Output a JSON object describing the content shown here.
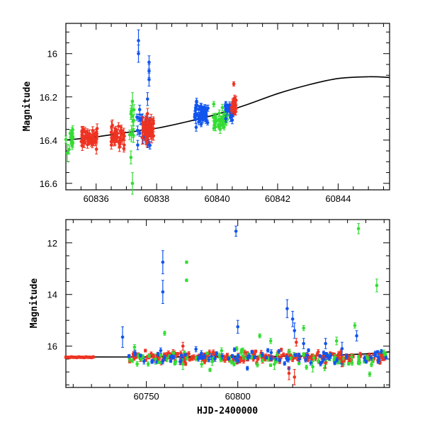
{
  "colors": {
    "green": "#33dd33",
    "blue": "#1155ee",
    "red": "#ee3322",
    "curve": "#000000"
  },
  "chart_data": [
    {
      "type": "scatter",
      "xlabel": "",
      "ylabel": "Magnitude",
      "xlim": [
        60835.0,
        60845.7
      ],
      "ylim": [
        16.63,
        15.86
      ],
      "y_inverted": true,
      "grid": false,
      "xticks": [
        60836,
        60838,
        60840,
        60842,
        60844
      ],
      "yticks": [
        16,
        16.2,
        16.4,
        16.6
      ],
      "model_curve": {
        "x": [
          60835.0,
          60836.0,
          60837.0,
          60838.0,
          60839.0,
          60840.0,
          60841.0,
          60842.0,
          60843.0,
          60844.0,
          60845.0,
          60845.7
        ],
        "y": [
          16.4,
          16.385,
          16.365,
          16.345,
          16.315,
          16.28,
          16.235,
          16.185,
          16.145,
          16.115,
          16.107,
          16.11
        ]
      },
      "series": [
        {
          "color": "green",
          "clusters": [
            {
              "x0": 60835.0,
              "x1": 60835.25,
              "y": 16.4,
              "spread": 0.03,
              "err": 0.02,
              "n": 14
            },
            {
              "x0": 60837.1,
              "x1": 60837.25,
              "y": 16.33,
              "spread": 0.06,
              "err": 0.03,
              "n": 10
            },
            {
              "x0": 60839.85,
              "x1": 60840.35,
              "y": 16.3,
              "spread": 0.025,
              "err": 0.015,
              "n": 40
            }
          ],
          "points": [
            [
              60835.05,
              16.46,
              0.04
            ],
            [
              60837.2,
              16.6,
              0.05
            ],
            [
              60837.2,
              16.22,
              0.04
            ],
            [
              60837.15,
              16.48,
              0.03
            ]
          ]
        },
        {
          "color": "blue",
          "clusters": [
            {
              "x0": 60837.35,
              "x1": 60837.8,
              "y": 16.35,
              "spread": 0.035,
              "err": 0.02,
              "n": 40
            },
            {
              "x0": 60839.25,
              "x1": 60839.7,
              "y": 16.28,
              "spread": 0.025,
              "err": 0.015,
              "n": 55
            },
            {
              "x0": 60840.25,
              "x1": 60840.55,
              "y": 16.26,
              "spread": 0.02,
              "err": 0.015,
              "n": 22
            }
          ],
          "points": [
            [
              60837.4,
              15.94,
              0.05
            ],
            [
              60837.4,
              16.0,
              0.04
            ],
            [
              60837.75,
              16.04,
              0.03
            ],
            [
              60837.75,
              16.08,
              0.03
            ],
            [
              60837.75,
              16.12,
              0.03
            ],
            [
              60837.7,
              16.21,
              0.03
            ]
          ]
        },
        {
          "color": "red",
          "clusters": [
            {
              "x0": 60835.5,
              "x1": 60836.05,
              "y": 16.385,
              "spread": 0.02,
              "err": 0.02,
              "n": 45
            },
            {
              "x0": 60836.5,
              "x1": 60836.95,
              "y": 16.38,
              "spread": 0.025,
              "err": 0.02,
              "n": 40
            },
            {
              "x0": 60837.5,
              "x1": 60837.9,
              "y": 16.35,
              "spread": 0.03,
              "err": 0.025,
              "n": 40
            },
            {
              "x0": 60840.45,
              "x1": 60840.65,
              "y": 16.245,
              "spread": 0.015,
              "err": 0.015,
              "n": 16
            }
          ],
          "points": [
            [
              60840.55,
              16.14,
              0.01
            ]
          ]
        }
      ]
    },
    {
      "type": "scatter",
      "xlabel": "HJD-2400000",
      "ylabel": "Magnitude",
      "xlim": [
        60706,
        60883
      ],
      "ylim": [
        17.6,
        11.1
      ],
      "y_inverted": true,
      "grid": false,
      "xticks": [
        60750,
        60800
      ],
      "yticks": [
        12,
        14,
        16
      ],
      "model_curve": {
        "x": [
          60706,
          60760,
          60800,
          60840,
          60870,
          60883
        ],
        "y": [
          16.42,
          16.42,
          16.41,
          16.38,
          16.3,
          16.22
        ]
      },
      "series": [
        {
          "color": "green",
          "points": [
            [
              60866,
              11.45,
              0.2
            ],
            [
              60876,
              13.65,
              0.25
            ],
            [
              60772,
              12.75,
              0.05
            ],
            [
              60772,
              13.45,
              0.05
            ],
            [
              60760,
              15.5,
              0.08
            ],
            [
              60812,
              15.6,
              0.08
            ],
            [
              60818,
              15.8,
              0.1
            ],
            [
              60836,
              15.3,
              0.1
            ],
            [
              60854,
              15.8,
              0.15
            ],
            [
              60864,
              15.2,
              0.1
            ],
            [
              60755,
              16.5,
              0.2
            ],
            [
              60770,
              16.7,
              0.2
            ],
            [
              60786,
              16.6,
              0.15
            ],
            [
              60820,
              16.7,
              0.2
            ],
            [
              60841,
              16.8,
              0.2
            ],
            [
              60880,
              16.25,
              0.1
            ]
          ]
        },
        {
          "color": "blue",
          "points": [
            [
              60799,
              11.55,
              0.2
            ],
            [
              60759,
              12.75,
              0.45
            ],
            [
              60759,
              13.9,
              0.45
            ],
            [
              60737,
              15.65,
              0.4
            ],
            [
              60800,
              15.25,
              0.25
            ],
            [
              60827,
              14.55,
              0.35
            ],
            [
              60830,
              14.95,
              0.3
            ],
            [
              60831,
              15.4,
              0.3
            ],
            [
              60836,
              15.9,
              0.2
            ],
            [
              60857,
              16.1,
              0.25
            ],
            [
              60865,
              15.6,
              0.2
            ],
            [
              60848,
              15.9,
              0.2
            ]
          ]
        },
        {
          "color": "red",
          "points": [
            [
              60706,
              16.43,
              0.05
            ],
            [
              60707,
              16.43,
              0.05
            ],
            [
              60708,
              16.44,
              0.05
            ],
            [
              60709,
              16.42,
              0.05
            ],
            [
              60710,
              16.43,
              0.05
            ],
            [
              60711,
              16.43,
              0.05
            ],
            [
              60712,
              16.44,
              0.05
            ],
            [
              60713,
              16.42,
              0.05
            ],
            [
              60714,
              16.43,
              0.05
            ],
            [
              60715,
              16.43,
              0.05
            ],
            [
              60716,
              16.44,
              0.05
            ],
            [
              60717,
              16.42,
              0.05
            ],
            [
              60718,
              16.43,
              0.05
            ],
            [
              60719,
              16.43,
              0.05
            ],
            [
              60720,
              16.44,
              0.05
            ],
            [
              60721,
              16.42,
              0.05
            ],
            [
              60770,
              16.0,
              0.15
            ],
            [
              60832,
              15.85,
              0.15
            ],
            [
              60831,
              17.2,
              0.3
            ],
            [
              60828,
              17.05,
              0.25
            ],
            [
              60857,
              16.6,
              0.2
            ],
            [
              60848,
              16.65,
              0.2
            ]
          ]
        }
      ],
      "dense_band": [
        {
          "color": "red",
          "x0": 60740,
          "x1": 60882,
          "y": 16.42,
          "spread": 0.1,
          "err": 0.07,
          "n": 260
        },
        {
          "color": "green",
          "x0": 60740,
          "x1": 60882,
          "y": 16.5,
          "spread": 0.18,
          "err": 0.08,
          "n": 90
        },
        {
          "color": "blue",
          "x0": 60740,
          "x1": 60882,
          "y": 16.45,
          "spread": 0.14,
          "err": 0.08,
          "n": 90
        }
      ]
    }
  ]
}
